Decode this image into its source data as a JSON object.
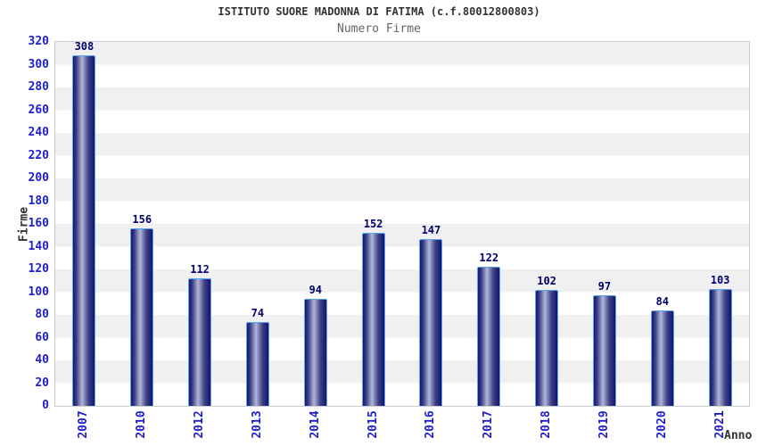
{
  "title": "ISTITUTO SUORE MADONNA DI FATIMA (c.f.80012800803)",
  "subtitle": "Numero Firme",
  "chart_data": {
    "type": "bar",
    "title": "ISTITUTO SUORE MADONNA DI FATIMA (c.f.80012800803)",
    "subtitle": "Numero Firme",
    "categories": [
      "2007",
      "2010",
      "2012",
      "2013",
      "2014",
      "2015",
      "2016",
      "2017",
      "2018",
      "2019",
      "2020",
      "2021"
    ],
    "values": [
      308,
      156,
      112,
      74,
      94,
      152,
      147,
      122,
      102,
      97,
      84,
      103
    ],
    "xlabel": "Anno",
    "ylabel": "Firme",
    "ylim": [
      0,
      320
    ],
    "ytick_step": 20,
    "grid": "horizontal-alternating-bands",
    "legend": "none",
    "bar_value_labels": true,
    "x_tick_rotation": -90
  },
  "colors": {
    "background": "#ffffff",
    "band_light": "#ffffff",
    "band_gray": "#f0f0f0",
    "plot_border": "#cccccc",
    "bar_edge": "#14146e",
    "bar_mid": "#3c4186",
    "bar_highlight": "#b2b6d8",
    "bar_border": "#58a6f2",
    "tick_label": "#2020cc",
    "value_label": "#000070",
    "title": "#333333",
    "subtitle": "#666666",
    "axis_title": "#333333"
  }
}
